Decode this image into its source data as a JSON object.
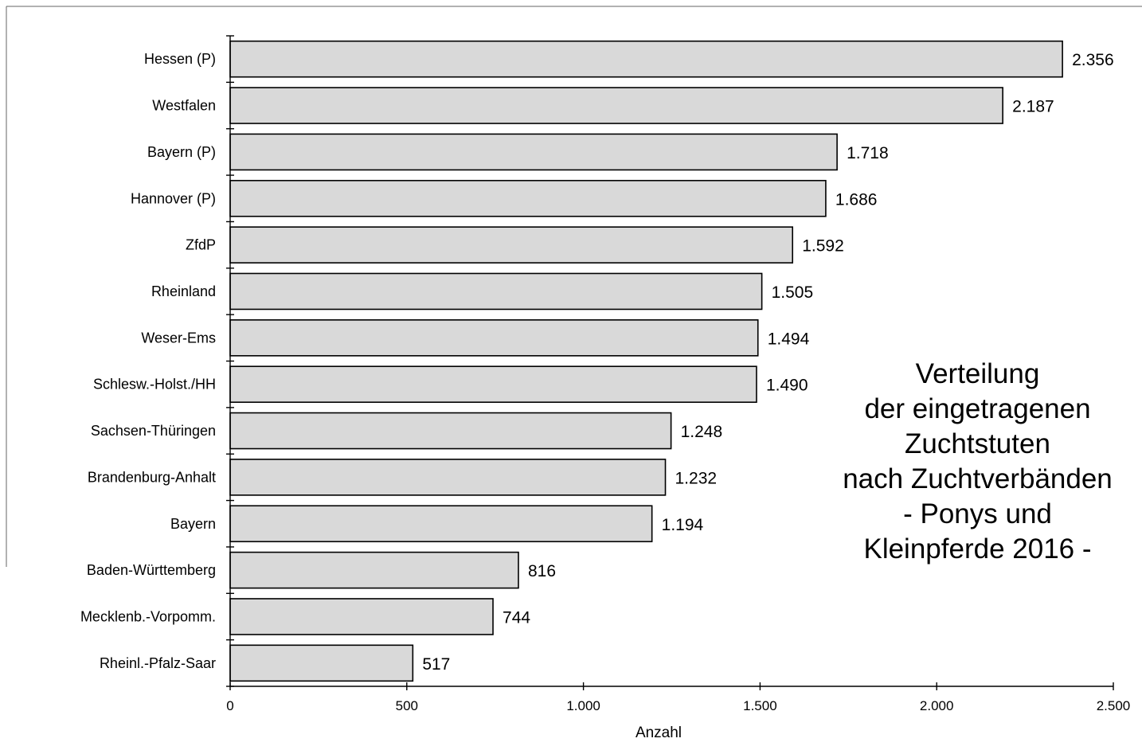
{
  "chart_data": {
    "type": "bar",
    "orientation": "horizontal",
    "title_lines": [
      "Verteilung",
      "der eingetragenen",
      "Zuchtstuten",
      "nach Zuchtverbänden",
      "- Ponys und",
      "Kleinpferde 2016 -"
    ],
    "xlabel": "Anzahl",
    "ylabel": "",
    "xlim": [
      0,
      2500
    ],
    "x_ticks": [
      0,
      500,
      1000,
      1500,
      2000,
      2500
    ],
    "x_tick_labels": [
      "0",
      "500",
      "1.000",
      "1.500",
      "2.000",
      "2.500"
    ],
    "categories": [
      "Hessen (P)",
      "Westfalen",
      "Bayern (P)",
      "Hannover (P)",
      "ZfdP",
      "Rheinland",
      "Weser-Ems",
      "Schlesw.-Holst./HH",
      "Sachsen-Thüringen",
      "Brandenburg-Anhalt",
      "Bayern",
      "Baden-Württemberg",
      "Mecklenb.-Vorpomm.",
      "Rheinl.-Pfalz-Saar"
    ],
    "values": [
      2356,
      2187,
      1718,
      1686,
      1592,
      1505,
      1494,
      1490,
      1248,
      1232,
      1194,
      816,
      744,
      517
    ],
    "value_labels": [
      "2.356",
      "2.187",
      "1.718",
      "1.686",
      "1.592",
      "1.505",
      "1.494",
      "1.490",
      "1.248",
      "1.232",
      "1.194",
      "816",
      "744",
      "517"
    ],
    "bar_color": "#d9d9d9",
    "bar_edge_color": "#000000",
    "grid": false,
    "legend": "none"
  }
}
